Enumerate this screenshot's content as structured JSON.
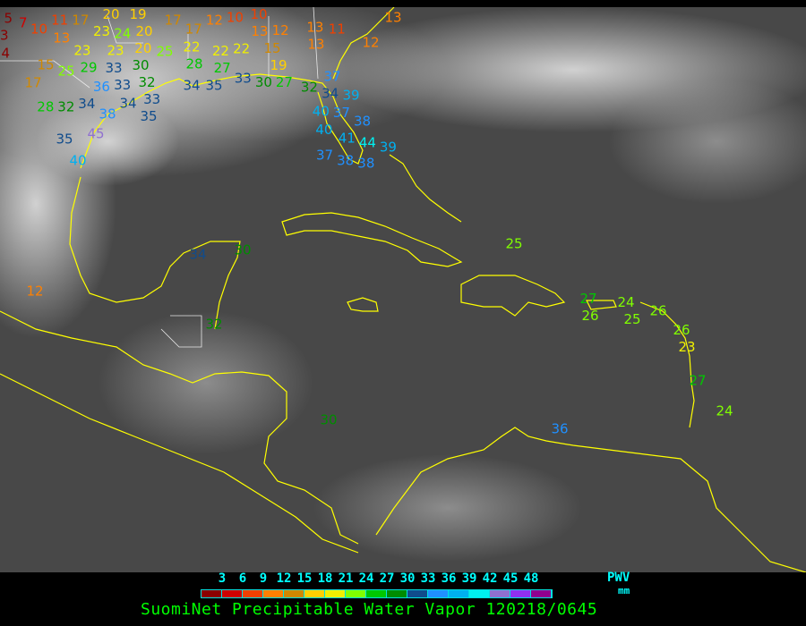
{
  "map": {
    "coastline_color": "#ffff00",
    "stations": [
      {
        "value": "5"
      },
      {
        "value": "7"
      },
      {
        "value": "3"
      },
      {
        "value": "4"
      },
      {
        "value": "10"
      },
      {
        "value": "13"
      },
      {
        "value": "11"
      },
      {
        "value": "17"
      },
      {
        "value": "20"
      },
      {
        "value": "19"
      },
      {
        "value": "20"
      },
      {
        "value": "20"
      },
      {
        "value": "23"
      },
      {
        "value": "24"
      },
      {
        "value": "23"
      },
      {
        "value": "23"
      },
      {
        "value": "15"
      },
      {
        "value": "17"
      },
      {
        "value": "25"
      },
      {
        "value": "29"
      },
      {
        "value": "33"
      },
      {
        "value": "30"
      },
      {
        "value": "32"
      },
      {
        "value": "25"
      },
      {
        "value": "22"
      },
      {
        "value": "28"
      },
      {
        "value": "22"
      },
      {
        "value": "22"
      },
      {
        "value": "27"
      },
      {
        "value": "17"
      },
      {
        "value": "17"
      },
      {
        "value": "12"
      },
      {
        "value": "10"
      },
      {
        "value": "10"
      },
      {
        "value": "13"
      },
      {
        "value": "12"
      },
      {
        "value": "15"
      },
      {
        "value": "19"
      },
      {
        "value": "13"
      },
      {
        "value": "11"
      },
      {
        "value": "13"
      },
      {
        "value": "12"
      },
      {
        "value": "13"
      },
      {
        "value": "36"
      },
      {
        "value": "33"
      },
      {
        "value": "33"
      },
      {
        "value": "34"
      },
      {
        "value": "35"
      },
      {
        "value": "33"
      },
      {
        "value": "30"
      },
      {
        "value": "27"
      },
      {
        "value": "32"
      },
      {
        "value": "37"
      },
      {
        "value": "34"
      },
      {
        "value": "39"
      },
      {
        "value": "37"
      },
      {
        "value": "40"
      },
      {
        "value": "40"
      },
      {
        "value": "38"
      },
      {
        "value": "41"
      },
      {
        "value": "44"
      },
      {
        "value": "39"
      },
      {
        "value": "37"
      },
      {
        "value": "38"
      },
      {
        "value": "38"
      },
      {
        "value": "28"
      },
      {
        "value": "32"
      },
      {
        "value": "34"
      },
      {
        "value": "38"
      },
      {
        "value": "34"
      },
      {
        "value": "35"
      },
      {
        "value": "35"
      },
      {
        "value": "45"
      },
      {
        "value": "40"
      },
      {
        "value": "12"
      },
      {
        "value": "34"
      },
      {
        "value": "30"
      },
      {
        "value": "32"
      },
      {
        "value": "30"
      },
      {
        "value": "36"
      },
      {
        "value": "25"
      },
      {
        "value": "27"
      },
      {
        "value": "26"
      },
      {
        "value": "24"
      },
      {
        "value": "25"
      },
      {
        "value": "26"
      },
      {
        "value": "26"
      },
      {
        "value": "23"
      },
      {
        "value": "27"
      },
      {
        "value": "24"
      }
    ]
  },
  "legend": {
    "ticks": [
      "3",
      "6",
      "9",
      "12",
      "15",
      "18",
      "21",
      "24",
      "27",
      "30",
      "33",
      "36",
      "39",
      "42",
      "45",
      "48"
    ],
    "colors": [
      "#8b0000",
      "#d00000",
      "#f04000",
      "#ff8000",
      "#d08800",
      "#ffd000",
      "#f0f000",
      "#80ff00",
      "#00c800",
      "#008c00",
      "#104c8c",
      "#2090ff",
      "#00b0f0",
      "#00f0f0",
      "#9070d0",
      "#9030f0",
      "#900090"
    ],
    "unit_label": "PWV",
    "unit_sub": "mm",
    "title": "SuomiNet Precipitable Water Vapor 120218/0645"
  }
}
